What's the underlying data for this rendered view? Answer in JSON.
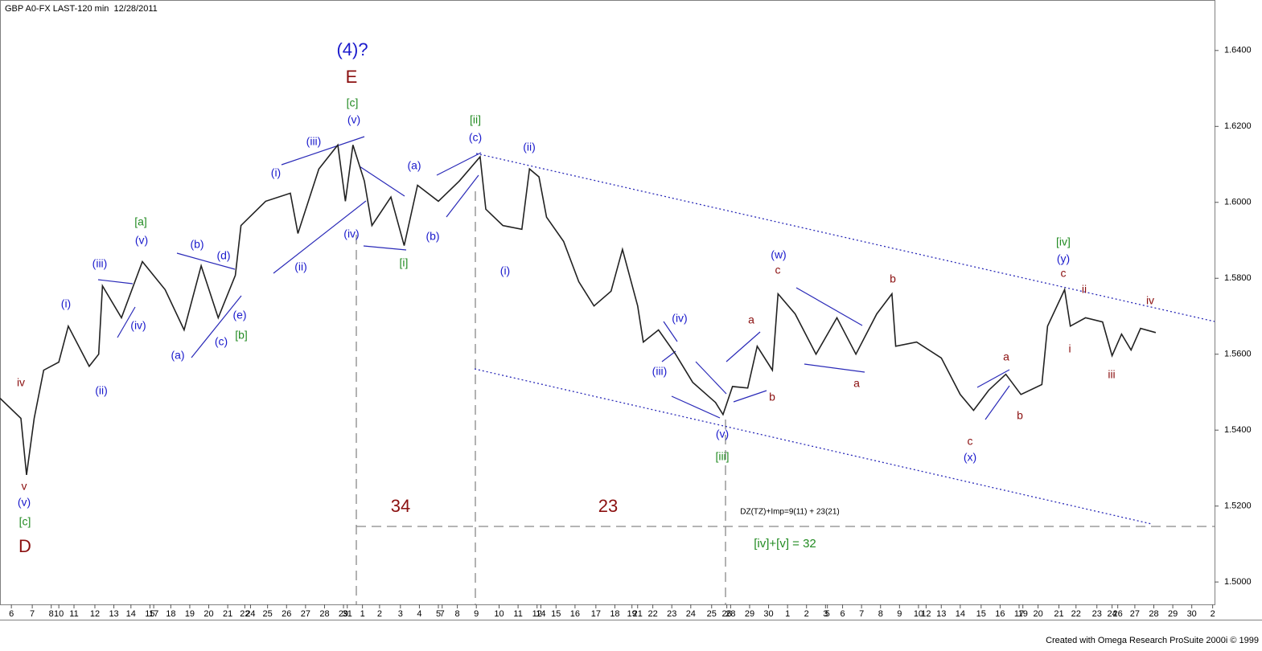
{
  "chart_data": {
    "type": "line",
    "title": "GBP A0-FX LAST-120 min  12/28/2011",
    "footer": "Created with Omega Research ProSuite 2000i © 1999",
    "xlim": [
      0,
      64
    ],
    "ylim": [
      1.4941,
      1.6533
    ],
    "yticks": [
      {
        "value": 1.5,
        "label": "1.5000"
      },
      {
        "value": 1.52,
        "label": "1.5200"
      },
      {
        "value": 1.54,
        "label": "1.5400"
      },
      {
        "value": 1.56,
        "label": "1.5600"
      },
      {
        "value": 1.58,
        "label": "1.5800"
      },
      {
        "value": 1.6,
        "label": "1.6000"
      },
      {
        "value": 1.62,
        "label": "1.6200"
      },
      {
        "value": 1.64,
        "label": "1.6400"
      }
    ],
    "xticks": [
      {
        "value": 0.6,
        "label": "6"
      },
      {
        "value": 1.7,
        "label": "7"
      },
      {
        "value": 2.7,
        "label": "8"
      },
      {
        "value": 3.1,
        "label": "10"
      },
      {
        "value": 3.9,
        "label": "11"
      },
      {
        "value": 5.0,
        "label": "12"
      },
      {
        "value": 6.0,
        "label": "13"
      },
      {
        "value": 6.9,
        "label": "14"
      },
      {
        "value": 7.9,
        "label": "15"
      },
      {
        "value": 8.1,
        "label": "17"
      },
      {
        "value": 9.0,
        "label": "18"
      },
      {
        "value": 10.0,
        "label": "19"
      },
      {
        "value": 11.0,
        "label": "20"
      },
      {
        "value": 12.0,
        "label": "21"
      },
      {
        "value": 12.9,
        "label": "22"
      },
      {
        "value": 13.2,
        "label": "24"
      },
      {
        "value": 14.1,
        "label": "25"
      },
      {
        "value": 15.1,
        "label": "26"
      },
      {
        "value": 16.1,
        "label": "27"
      },
      {
        "value": 17.1,
        "label": "28"
      },
      {
        "value": 18.1,
        "label": "29"
      },
      {
        "value": 18.3,
        "label": "31"
      },
      {
        "value": 19.1,
        "label": "1"
      },
      {
        "value": 20.0,
        "label": "2"
      },
      {
        "value": 21.1,
        "label": "3"
      },
      {
        "value": 22.1,
        "label": "4"
      },
      {
        "value": 23.1,
        "label": "5"
      },
      {
        "value": 23.3,
        "label": "7"
      },
      {
        "value": 24.1,
        "label": "8"
      },
      {
        "value": 25.1,
        "label": "9"
      },
      {
        "value": 26.3,
        "label": "10"
      },
      {
        "value": 27.3,
        "label": "11"
      },
      {
        "value": 28.3,
        "label": "12"
      },
      {
        "value": 28.5,
        "label": "14"
      },
      {
        "value": 29.3,
        "label": "15"
      },
      {
        "value": 30.3,
        "label": "16"
      },
      {
        "value": 31.4,
        "label": "17"
      },
      {
        "value": 32.4,
        "label": "18"
      },
      {
        "value": 33.3,
        "label": "19"
      },
      {
        "value": 33.6,
        "label": "21"
      },
      {
        "value": 34.4,
        "label": "22"
      },
      {
        "value": 35.4,
        "label": "23"
      },
      {
        "value": 36.4,
        "label": "24"
      },
      {
        "value": 37.5,
        "label": "25"
      },
      {
        "value": 38.3,
        "label": "26"
      },
      {
        "value": 38.5,
        "label": "28"
      },
      {
        "value": 39.5,
        "label": "29"
      },
      {
        "value": 40.5,
        "label": "30"
      },
      {
        "value": 41.5,
        "label": "1"
      },
      {
        "value": 42.5,
        "label": "2"
      },
      {
        "value": 43.5,
        "label": "3"
      },
      {
        "value": 43.6,
        "label": "5"
      },
      {
        "value": 44.4,
        "label": "6"
      },
      {
        "value": 45.4,
        "label": "7"
      },
      {
        "value": 46.4,
        "label": "8"
      },
      {
        "value": 47.4,
        "label": "9"
      },
      {
        "value": 48.4,
        "label": "10"
      },
      {
        "value": 48.8,
        "label": "12"
      },
      {
        "value": 49.6,
        "label": "13"
      },
      {
        "value": 50.6,
        "label": "14"
      },
      {
        "value": 51.7,
        "label": "15"
      },
      {
        "value": 52.7,
        "label": "16"
      },
      {
        "value": 53.7,
        "label": "17"
      },
      {
        "value": 53.9,
        "label": "19"
      },
      {
        "value": 54.7,
        "label": "20"
      },
      {
        "value": 55.8,
        "label": "21"
      },
      {
        "value": 56.7,
        "label": "22"
      },
      {
        "value": 57.8,
        "label": "23"
      },
      {
        "value": 58.6,
        "label": "24"
      },
      {
        "value": 58.9,
        "label": "26"
      },
      {
        "value": 59.8,
        "label": "27"
      },
      {
        "value": 60.8,
        "label": "28"
      },
      {
        "value": 61.8,
        "label": "29"
      },
      {
        "value": 62.8,
        "label": "30"
      },
      {
        "value": 63.9,
        "label": "2"
      }
    ],
    "series": [
      {
        "color": "#222222",
        "x": [
          0.0,
          1.1,
          1.4,
          1.8,
          2.3,
          3.1,
          3.6,
          4.7,
          5.2,
          5.4,
          6.4,
          7.5,
          8.7,
          9.7,
          10.6,
          11.5,
          12.4,
          12.7,
          14.0,
          15.3,
          15.7,
          16.8,
          17.8,
          18.2,
          18.6,
          19.2,
          19.6,
          20.6,
          21.3,
          22.0,
          23.1,
          24.2,
          25.3,
          25.6,
          26.5,
          27.5,
          27.9,
          28.4,
          28.8,
          29.7,
          30.5,
          31.3,
          32.2,
          32.8,
          33.6,
          33.9,
          34.7,
          35.6,
          36.5,
          37.7,
          38.1,
          38.6,
          39.4,
          39.9,
          40.7,
          41.0,
          41.9,
          43.0,
          44.1,
          45.1,
          46.2,
          47.0,
          47.2,
          48.3,
          49.6,
          50.6,
          51.3,
          52.1,
          53.0,
          53.8,
          54.9,
          55.2,
          56.1,
          56.4,
          57.2,
          58.1,
          58.6,
          59.1,
          59.6,
          60.1,
          60.9
        ],
        "values": [
          1.5484,
          1.5431,
          1.5282,
          1.5431,
          1.5558,
          1.5579,
          1.5674,
          1.5568,
          1.56,
          1.578,
          1.5696,
          1.5844,
          1.577,
          1.5664,
          1.5833,
          1.5696,
          1.5808,
          1.5939,
          1.6003,
          1.6024,
          1.5918,
          1.6088,
          1.6151,
          1.6003,
          1.6151,
          1.6056,
          1.5939,
          1.6014,
          1.5886,
          1.6045,
          1.6003,
          1.6056,
          1.612,
          1.5982,
          1.5939,
          1.5929,
          1.6088,
          1.6067,
          1.5961,
          1.5897,
          1.5791,
          1.5727,
          1.5766,
          1.5876,
          1.5727,
          1.5632,
          1.5664,
          1.56,
          1.5526,
          1.5473,
          1.5441,
          1.5515,
          1.5511,
          1.5621,
          1.5558,
          1.5759,
          1.5706,
          1.56,
          1.5696,
          1.56,
          1.5706,
          1.5759,
          1.5621,
          1.5632,
          1.559,
          1.5494,
          1.5452,
          1.5505,
          1.5547,
          1.5494,
          1.552,
          1.5674,
          1.577,
          1.5674,
          1.5696,
          1.5685,
          1.5596,
          1.5653,
          1.5611,
          1.5668,
          1.5657
        ]
      }
    ],
    "annotations": [
      {
        "text": "(4)?",
        "color": "#1a1acc"
      },
      {
        "text": "E",
        "color": "#8b1010"
      },
      {
        "text": "[c]",
        "color": "#228b22"
      },
      {
        "text": "(v)",
        "color": "#1a1acc"
      },
      {
        "text": "(iii)",
        "color": "#1a1acc"
      },
      {
        "text": "(i)",
        "color": "#1a1acc"
      },
      {
        "text": "(ii)",
        "color": "#1a1acc"
      },
      {
        "text": "(iv)",
        "color": "#1a1acc"
      },
      {
        "text": "[i]",
        "color": "#228b22"
      },
      {
        "text": "(a)",
        "color": "#1a1acc"
      },
      {
        "text": "(b)",
        "color": "#1a1acc"
      },
      {
        "text": "[ii]",
        "color": "#228b22"
      },
      {
        "text": "(c)",
        "color": "#1a1acc"
      },
      {
        "text": "(ii)",
        "color": "#1a1acc"
      },
      {
        "text": "(i)",
        "color": "#1a1acc"
      },
      {
        "text": "[a]",
        "color": "#228b22"
      },
      {
        "text": "(v)",
        "color": "#1a1acc"
      },
      {
        "text": "(iii)",
        "color": "#1a1acc"
      },
      {
        "text": "(i)",
        "color": "#1a1acc"
      },
      {
        "text": "(ii)",
        "color": "#1a1acc"
      },
      {
        "text": "(iv)",
        "color": "#1a1acc"
      },
      {
        "text": "(b)",
        "color": "#1a1acc"
      },
      {
        "text": "(d)",
        "color": "#1a1acc"
      },
      {
        "text": "(e)",
        "color": "#1a1acc"
      },
      {
        "text": "[b]",
        "color": "#228b22"
      },
      {
        "text": "(c)",
        "color": "#1a1acc"
      },
      {
        "text": "(a)",
        "color": "#1a1acc"
      },
      {
        "text": "iv",
        "color": "#8b1010"
      },
      {
        "text": "v",
        "color": "#8b1010"
      },
      {
        "text": "(v)",
        "color": "#1a1acc"
      },
      {
        "text": "[c]",
        "color": "#228b22"
      },
      {
        "text": "D",
        "color": "#8b1010"
      },
      {
        "text": "(iv)",
        "color": "#1a1acc"
      },
      {
        "text": "(iii)",
        "color": "#1a1acc"
      },
      {
        "text": "(v)",
        "color": "#1a1acc"
      },
      {
        "text": "[iii]",
        "color": "#228b22"
      },
      {
        "text": "a",
        "color": "#8b1010"
      },
      {
        "text": "b",
        "color": "#8b1010"
      },
      {
        "text": "(w)",
        "color": "#1a1acc"
      },
      {
        "text": "c",
        "color": "#8b1010"
      },
      {
        "text": "a",
        "color": "#8b1010"
      },
      {
        "text": "b",
        "color": "#8b1010"
      },
      {
        "text": "a",
        "color": "#8b1010"
      },
      {
        "text": "b",
        "color": "#8b1010"
      },
      {
        "text": "c",
        "color": "#8b1010"
      },
      {
        "text": "(x)",
        "color": "#1a1acc"
      },
      {
        "text": "[iv]",
        "color": "#228b22"
      },
      {
        "text": "(y)",
        "color": "#1a1acc"
      },
      {
        "text": "c",
        "color": "#8b1010"
      },
      {
        "text": "ii",
        "color": "#8b1010"
      },
      {
        "text": "i",
        "color": "#8b1010"
      },
      {
        "text": "iii",
        "color": "#8b1010"
      },
      {
        "text": "iv",
        "color": "#8b1010"
      },
      {
        "text": "34",
        "color": "#8b1010"
      },
      {
        "text": "23",
        "color": "#8b1010"
      },
      {
        "text": "DZ(TZ)+Imp=9(11) + 23(21)",
        "color": "#000000"
      },
      {
        "text": "[iv]+[v] = 32",
        "color": "#228b22"
      }
    ]
  }
}
